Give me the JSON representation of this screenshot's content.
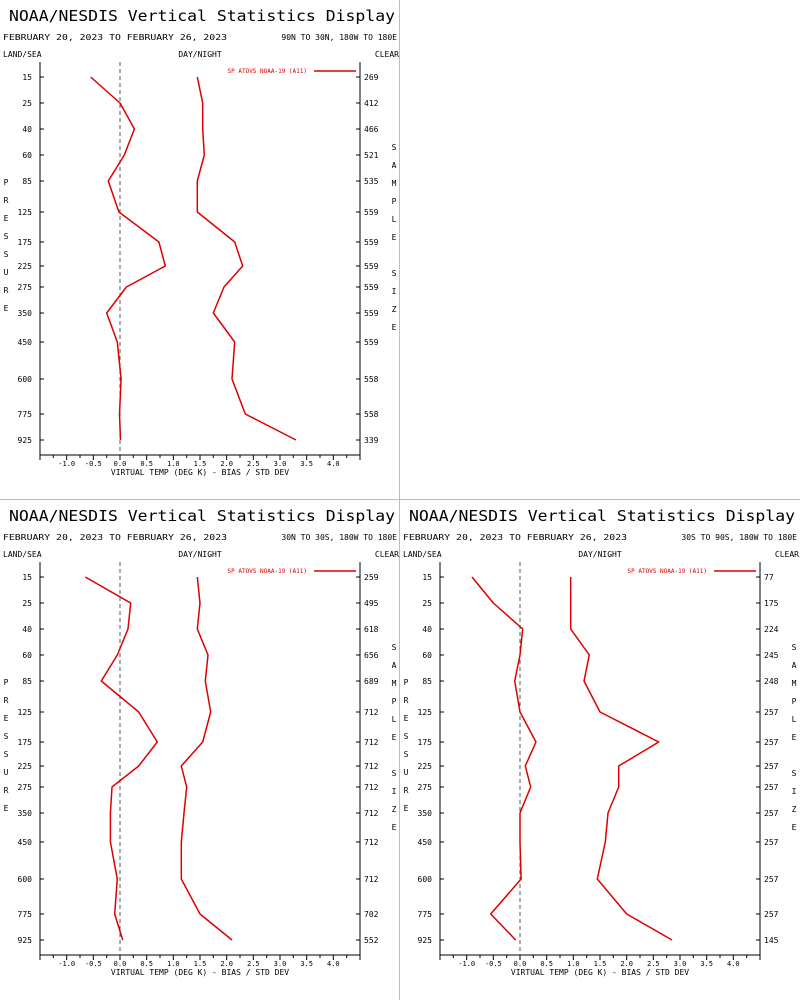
{
  "colors": {
    "series": "#dd0000",
    "axis": "#000000",
    "zero_line": "#555555",
    "divider": "#bdbdbd"
  },
  "chart_data": [
    {
      "type": "line",
      "title": "NOAA/NESDIS Vertical Statistics Display",
      "date_range": "FEBRUARY 20, 2023 TO FEBRUARY 26, 2023",
      "region": "90N TO 30N, 180W TO 180E",
      "col_left": "LAND/SEA",
      "col_mid": "DAY/NIGHT",
      "col_right": "CLEAR",
      "ylabel": "PRESSURE",
      "y2label": "SAMPLE SIZE",
      "xlabel": "VIRTUAL TEMP (DEG K) - BIAS / STD DEV",
      "xlim": [
        -1.5,
        4.5
      ],
      "x_ticks": [
        "-1.0",
        "-0.5",
        "0.0",
        "0.5",
        "1.0",
        "1.5",
        "2.0",
        "2.5",
        "3.0",
        "3.5",
        "4.0"
      ],
      "legend": "SP ATOVS NOAA-19 (A11)",
      "pressure_levels": [
        "15",
        "25",
        "40",
        "60",
        "85",
        "125",
        "175",
        "225",
        "275",
        "350",
        "450",
        "600",
        "775",
        "925"
      ],
      "sample_size": [
        "269",
        "412",
        "466",
        "521",
        "535",
        "559",
        "559",
        "559",
        "559",
        "559",
        "559",
        "558",
        "558",
        "339"
      ],
      "series": [
        {
          "role": "bias",
          "values": [
            -0.55,
            0.0,
            0.27,
            0.08,
            -0.22,
            -0.02,
            0.73,
            0.85,
            0.12,
            -0.25,
            -0.05,
            0.02,
            -0.01,
            0.01
          ]
        },
        {
          "role": "std_dev",
          "values": [
            1.45,
            1.55,
            1.55,
            1.58,
            1.45,
            1.45,
            2.15,
            2.3,
            1.95,
            1.75,
            2.15,
            2.1,
            2.35,
            3.3
          ]
        }
      ]
    },
    {
      "type": "line",
      "title": "NOAA/NESDIS Vertical Statistics Display",
      "date_range": "FEBRUARY 20, 2023 TO FEBRUARY 26, 2023",
      "region": "30N TO 30S, 180W TO 180E",
      "col_left": "LAND/SEA",
      "col_mid": "DAY/NIGHT",
      "col_right": "CLEAR",
      "ylabel": "PRESSURE",
      "y2label": "SAMPLE SIZE",
      "xlabel": "VIRTUAL TEMP (DEG K) - BIAS / STD DEV",
      "xlim": [
        -1.5,
        4.5
      ],
      "x_ticks": [
        "-1.0",
        "-0.5",
        "0.0",
        "0.5",
        "1.0",
        "1.5",
        "2.0",
        "2.5",
        "3.0",
        "3.5",
        "4.0"
      ],
      "legend": "SP ATOVS NOAA-19 (A11)",
      "pressure_levels": [
        "15",
        "25",
        "40",
        "60",
        "85",
        "125",
        "175",
        "225",
        "275",
        "350",
        "450",
        "600",
        "775",
        "925"
      ],
      "sample_size": [
        "259",
        "495",
        "618",
        "656",
        "689",
        "712",
        "712",
        "712",
        "712",
        "712",
        "712",
        "712",
        "702",
        "552"
      ],
      "series": [
        {
          "role": "bias",
          "values": [
            -0.65,
            0.2,
            0.15,
            -0.05,
            -0.35,
            0.35,
            0.7,
            0.35,
            -0.15,
            -0.18,
            -0.18,
            -0.05,
            -0.1,
            0.05
          ]
        },
        {
          "role": "std_dev",
          "values": [
            1.45,
            1.5,
            1.45,
            1.65,
            1.6,
            1.7,
            1.55,
            1.15,
            1.25,
            1.2,
            1.15,
            1.15,
            1.5,
            2.1
          ]
        }
      ]
    },
    {
      "type": "line",
      "title": "NOAA/NESDIS Vertical Statistics Display",
      "date_range": "FEBRUARY 20, 2023 TO FEBRUARY 26, 2023",
      "region": "30S TO 90S, 180W TO 180E",
      "col_left": "LAND/SEA",
      "col_mid": "DAY/NIGHT",
      "col_right": "CLEAR",
      "ylabel": "PRESSURE",
      "y2label": "SAMPLE SIZE",
      "xlabel": "VIRTUAL TEMP (DEG K) - BIAS / STD DEV",
      "xlim": [
        -1.5,
        4.5
      ],
      "x_ticks": [
        "-1.0",
        "-0.5",
        "0.0",
        "0.5",
        "1.0",
        "1.5",
        "2.0",
        "2.5",
        "3.0",
        "3.5",
        "4.0"
      ],
      "legend": "SP ATOVS NOAA-19 (A11)",
      "pressure_levels": [
        "15",
        "25",
        "40",
        "60",
        "85",
        "125",
        "175",
        "225",
        "275",
        "350",
        "450",
        "600",
        "775",
        "925"
      ],
      "sample_size": [
        "77",
        "175",
        "224",
        "245",
        "248",
        "257",
        "257",
        "257",
        "257",
        "257",
        "257",
        "257",
        "257",
        "145"
      ],
      "series": [
        {
          "role": "bias",
          "values": [
            -0.9,
            -0.5,
            0.05,
            0.0,
            -0.1,
            0.0,
            0.3,
            0.1,
            0.2,
            0.0,
            0.0,
            0.02,
            -0.55,
            -0.08
          ]
        },
        {
          "role": "std_dev",
          "values": [
            0.95,
            0.95,
            0.95,
            1.3,
            1.2,
            1.5,
            2.6,
            1.85,
            1.85,
            1.65,
            1.6,
            1.45,
            2.0,
            2.85
          ]
        }
      ]
    }
  ]
}
